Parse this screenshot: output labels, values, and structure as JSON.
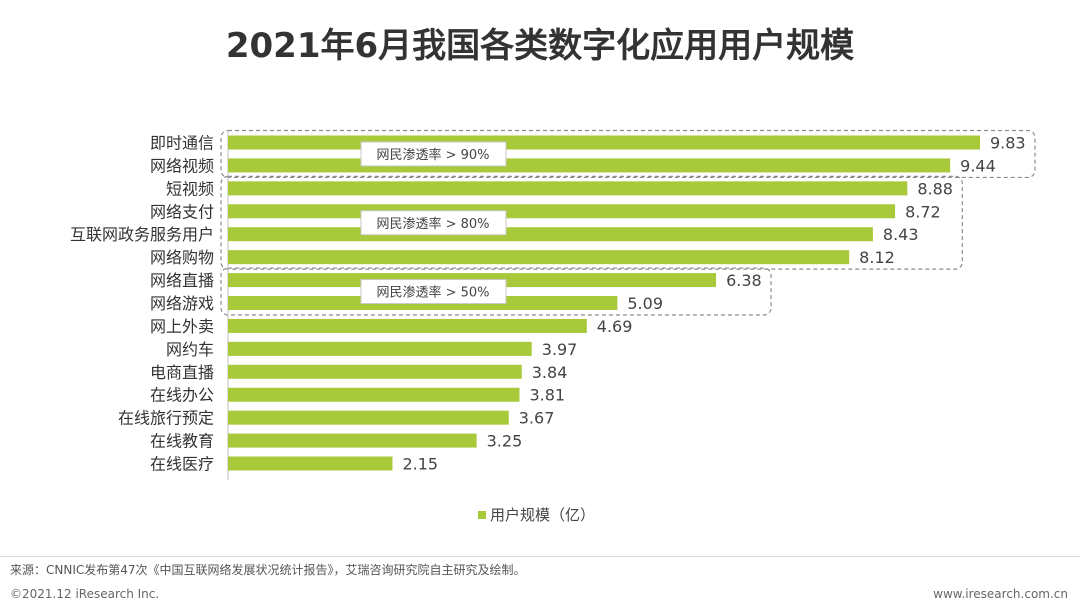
{
  "chart_data": {
    "type": "bar",
    "orientation": "horizontal",
    "title": "2021年6月我国各类数字化应用用户规模",
    "categories": [
      "即时通信",
      "网络视频",
      "短视频",
      "网络支付",
      "互联网政务服务用户",
      "网络购物",
      "网络直播",
      "网络游戏",
      "网上外卖",
      "网约车",
      "电商直播",
      "在线办公",
      "在线旅行预定",
      "在线教育",
      "在线医疗"
    ],
    "series": [
      {
        "name": "用户规模（亿）",
        "values": [
          9.83,
          9.44,
          8.88,
          8.72,
          8.43,
          8.12,
          6.38,
          5.09,
          4.69,
          3.97,
          3.84,
          3.81,
          3.67,
          3.25,
          2.15
        ]
      }
    ],
    "value_labels": [
      "9.83",
      "9.44",
      "8.88",
      "8.72",
      "8.43",
      "8.12",
      "6.38",
      "5.09",
      "4.69",
      "3.97",
      "3.84",
      "3.81",
      "3.67",
      "3.25",
      "2.15"
    ],
    "xlim": [
      0,
      10
    ],
    "grid": false,
    "legend": "bottom",
    "annotations": [
      {
        "text": "网民渗透率 > 90%",
        "group_start": 0,
        "group_end": 1
      },
      {
        "text": "网民渗透率 > 80%",
        "group_start": 2,
        "group_end": 5
      },
      {
        "text": "网民渗透率 > 50%",
        "group_start": 6,
        "group_end": 7
      }
    ],
    "colors": {
      "bar": "#a7c93a",
      "box_border": "#8c8c8c",
      "axis": "#bfbfbf"
    }
  },
  "legend_label": "用户规模（亿）",
  "footer": {
    "source": "来源：CNNIC发布第47次《中国互联网络发展状况统计报告》，艾瑞咨询研究院自主研究及绘制。",
    "copyright": "©2021.12 iResearch Inc.",
    "website": "www.iresearch.com.cn"
  }
}
